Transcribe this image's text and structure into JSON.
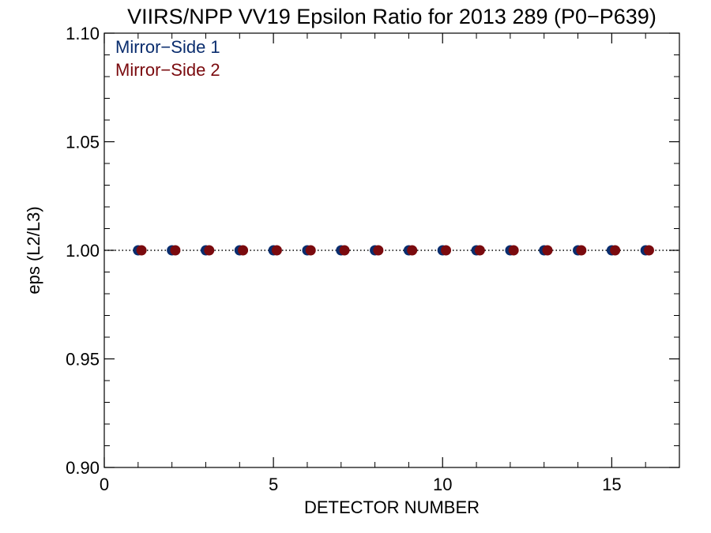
{
  "chart_data": {
    "type": "scatter",
    "title": "VIIRS/NPP VV19 Epsilon Ratio for 2013 289 (P0−P639)",
    "xlabel": "DETECTOR NUMBER",
    "ylabel": "eps (L2/L3)",
    "xlim": [
      0,
      17
    ],
    "ylim": [
      0.9,
      1.1
    ],
    "x_ticks": [
      0,
      5,
      10,
      15
    ],
    "x_tick_labels": [
      "0",
      "5",
      "10",
      "15"
    ],
    "y_ticks": [
      0.9,
      0.95,
      1.0,
      1.05,
      1.1
    ],
    "y_tick_labels": [
      "0.90",
      "0.95",
      "1.00",
      "1.05",
      "1.10"
    ],
    "reference_line": 1.0,
    "grid": false,
    "legend_position": "top-left",
    "series": [
      {
        "name": "Mirror−Side 1",
        "color": "#0a2d6e",
        "x": [
          1,
          2,
          3,
          4,
          5,
          6,
          7,
          8,
          9,
          10,
          11,
          12,
          13,
          14,
          15,
          16
        ],
        "y": [
          1.0,
          1.0,
          1.0,
          1.0,
          1.0,
          1.0,
          1.0,
          1.0,
          1.0,
          1.0,
          1.0,
          1.0,
          1.0,
          1.0,
          1.0,
          1.0
        ]
      },
      {
        "name": "Mirror−Side 2",
        "color": "#7a0a0e",
        "x": [
          1.1,
          2.1,
          3.1,
          4.1,
          5.1,
          6.1,
          7.1,
          8.1,
          9.1,
          10.1,
          11.1,
          12.1,
          13.1,
          14.1,
          15.1,
          16.1
        ],
        "y": [
          1.0,
          1.0,
          1.0,
          1.0,
          1.0,
          1.0,
          1.0,
          1.0,
          1.0,
          1.0,
          1.0,
          1.0,
          1.0,
          1.0,
          1.0,
          1.0
        ]
      }
    ]
  }
}
